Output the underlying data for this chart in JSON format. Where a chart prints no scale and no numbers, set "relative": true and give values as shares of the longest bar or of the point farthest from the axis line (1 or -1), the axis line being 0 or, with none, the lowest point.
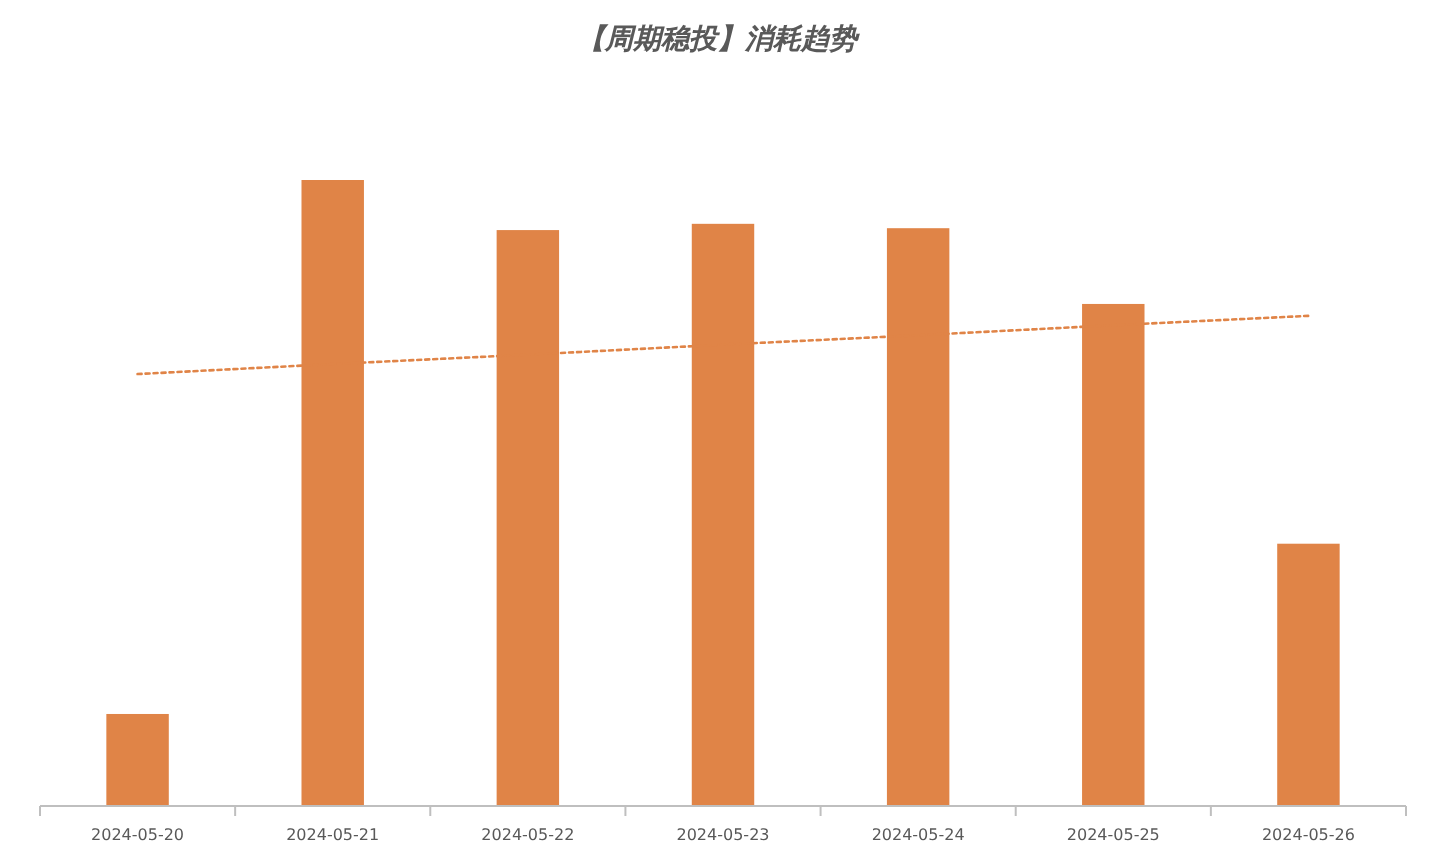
{
  "chart_data": {
    "type": "bar",
    "title": "【周期稳投】消耗趋势",
    "relative": true,
    "categories": [
      "2024-05-20",
      "2024-05-21",
      "2024-05-22",
      "2024-05-23",
      "2024-05-24",
      "2024-05-25",
      "2024-05-26"
    ],
    "series": [
      {
        "color": "#e08447",
        "values": [
          0.147,
          1,
          0.92,
          0.93,
          0.923,
          0.802,
          0.419
        ]
      },
      {
        "type": "line",
        "color": "#e08447",
        "line_style": "dotted",
        "values": [
          0.69,
          0.706,
          0.721,
          0.737,
          0.752,
          0.768,
          0.783
        ]
      }
    ]
  }
}
